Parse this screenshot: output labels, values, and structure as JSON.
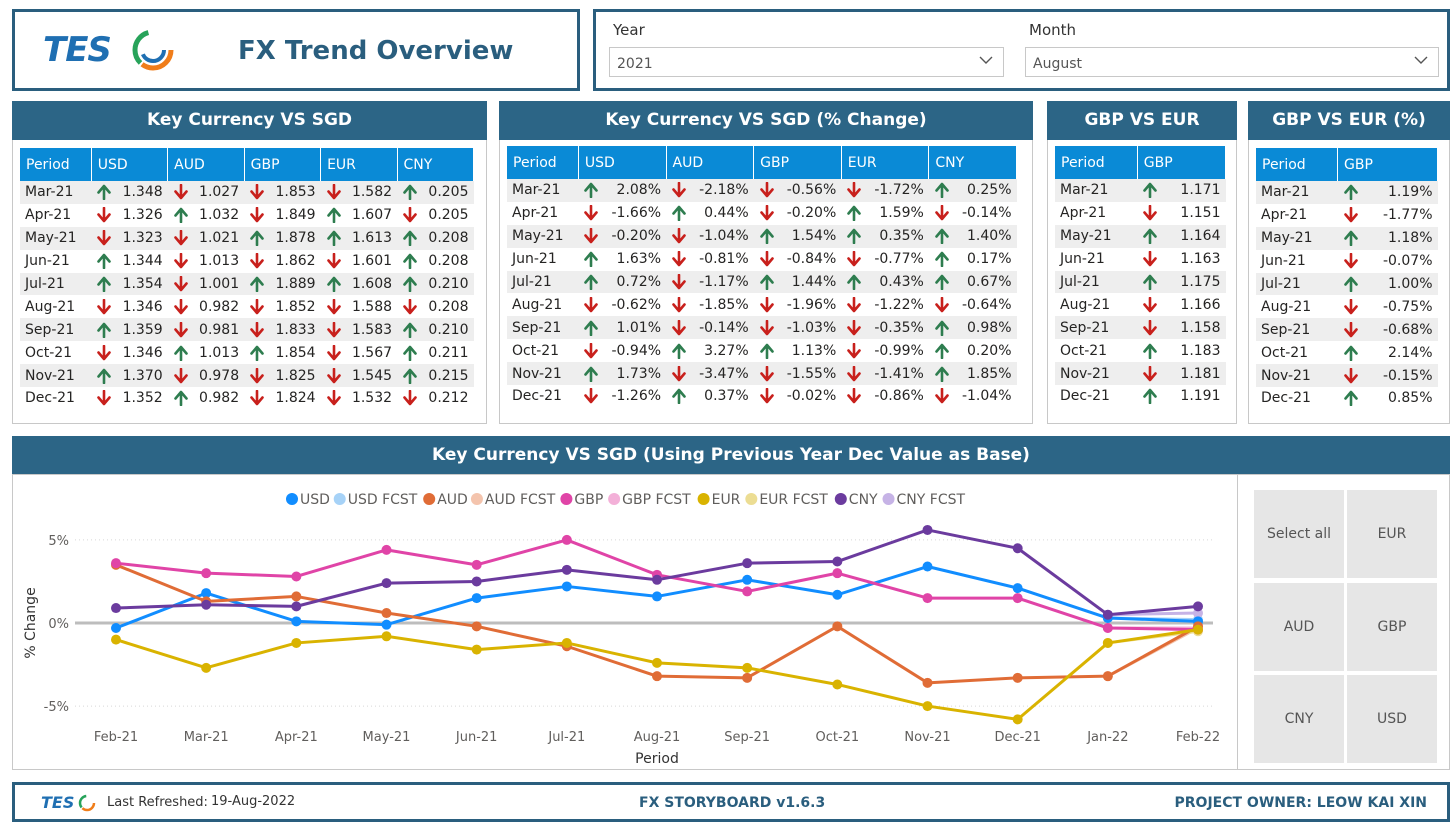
{
  "header": {
    "logo_text": "TES",
    "title": "FX Trend Overview"
  },
  "slicers": {
    "year": {
      "label": "Year",
      "value": "2021"
    },
    "month": {
      "label": "Month",
      "value": "August"
    }
  },
  "arrow_colors": {
    "up": "#2e7d4f",
    "down": "#c8201c"
  },
  "key_table": {
    "title": "Key Currency VS SGD",
    "columns": [
      "Period",
      "USD",
      "AUD",
      "GBP",
      "EUR",
      "CNY"
    ],
    "rows": [
      {
        "period": "Mar-21",
        "cells": [
          {
            "dir": "up",
            "v": "1.348"
          },
          {
            "dir": "down",
            "v": "1.027"
          },
          {
            "dir": "down",
            "v": "1.853"
          },
          {
            "dir": "down",
            "v": "1.582"
          },
          {
            "dir": "up",
            "v": "0.205"
          }
        ]
      },
      {
        "period": "Apr-21",
        "cells": [
          {
            "dir": "down",
            "v": "1.326"
          },
          {
            "dir": "up",
            "v": "1.032"
          },
          {
            "dir": "down",
            "v": "1.849"
          },
          {
            "dir": "up",
            "v": "1.607"
          },
          {
            "dir": "down",
            "v": "0.205"
          }
        ]
      },
      {
        "period": "May-21",
        "cells": [
          {
            "dir": "down",
            "v": "1.323"
          },
          {
            "dir": "down",
            "v": "1.021"
          },
          {
            "dir": "up",
            "v": "1.878"
          },
          {
            "dir": "up",
            "v": "1.613"
          },
          {
            "dir": "up",
            "v": "0.208"
          }
        ]
      },
      {
        "period": "Jun-21",
        "cells": [
          {
            "dir": "up",
            "v": "1.344"
          },
          {
            "dir": "down",
            "v": "1.013"
          },
          {
            "dir": "down",
            "v": "1.862"
          },
          {
            "dir": "down",
            "v": "1.601"
          },
          {
            "dir": "up",
            "v": "0.208"
          }
        ]
      },
      {
        "period": "Jul-21",
        "cells": [
          {
            "dir": "up",
            "v": "1.354"
          },
          {
            "dir": "down",
            "v": "1.001"
          },
          {
            "dir": "up",
            "v": "1.889"
          },
          {
            "dir": "up",
            "v": "1.608"
          },
          {
            "dir": "up",
            "v": "0.210"
          }
        ]
      },
      {
        "period": "Aug-21",
        "cells": [
          {
            "dir": "down",
            "v": "1.346"
          },
          {
            "dir": "down",
            "v": "0.982"
          },
          {
            "dir": "down",
            "v": "1.852"
          },
          {
            "dir": "down",
            "v": "1.588"
          },
          {
            "dir": "down",
            "v": "0.208"
          }
        ]
      },
      {
        "period": "Sep-21",
        "cells": [
          {
            "dir": "up",
            "v": "1.359"
          },
          {
            "dir": "down",
            "v": "0.981"
          },
          {
            "dir": "down",
            "v": "1.833"
          },
          {
            "dir": "down",
            "v": "1.583"
          },
          {
            "dir": "up",
            "v": "0.210"
          }
        ]
      },
      {
        "period": "Oct-21",
        "cells": [
          {
            "dir": "down",
            "v": "1.346"
          },
          {
            "dir": "up",
            "v": "1.013"
          },
          {
            "dir": "up",
            "v": "1.854"
          },
          {
            "dir": "down",
            "v": "1.567"
          },
          {
            "dir": "up",
            "v": "0.211"
          }
        ]
      },
      {
        "period": "Nov-21",
        "cells": [
          {
            "dir": "up",
            "v": "1.370"
          },
          {
            "dir": "down",
            "v": "0.978"
          },
          {
            "dir": "down",
            "v": "1.825"
          },
          {
            "dir": "down",
            "v": "1.545"
          },
          {
            "dir": "up",
            "v": "0.215"
          }
        ]
      },
      {
        "period": "Dec-21",
        "cells": [
          {
            "dir": "down",
            "v": "1.352"
          },
          {
            "dir": "up",
            "v": "0.982"
          },
          {
            "dir": "down",
            "v": "1.824"
          },
          {
            "dir": "down",
            "v": "1.532"
          },
          {
            "dir": "down",
            "v": "0.212"
          }
        ]
      }
    ]
  },
  "pct_table": {
    "title": "Key Currency VS SGD (% Change)",
    "columns": [
      "Period",
      "USD",
      "AUD",
      "GBP",
      "EUR",
      "CNY"
    ],
    "rows": [
      {
        "period": "Mar-21",
        "cells": [
          {
            "dir": "up",
            "v": "2.08%"
          },
          {
            "dir": "down",
            "v": "-2.18%"
          },
          {
            "dir": "down",
            "v": "-0.56%"
          },
          {
            "dir": "down",
            "v": "-1.72%"
          },
          {
            "dir": "up",
            "v": "0.25%"
          }
        ]
      },
      {
        "period": "Apr-21",
        "cells": [
          {
            "dir": "down",
            "v": "-1.66%"
          },
          {
            "dir": "up",
            "v": "0.44%"
          },
          {
            "dir": "down",
            "v": "-0.20%"
          },
          {
            "dir": "up",
            "v": "1.59%"
          },
          {
            "dir": "down",
            "v": "-0.14%"
          }
        ]
      },
      {
        "period": "May-21",
        "cells": [
          {
            "dir": "down",
            "v": "-0.20%"
          },
          {
            "dir": "down",
            "v": "-1.04%"
          },
          {
            "dir": "up",
            "v": "1.54%"
          },
          {
            "dir": "up",
            "v": "0.35%"
          },
          {
            "dir": "up",
            "v": "1.40%"
          }
        ]
      },
      {
        "period": "Jun-21",
        "cells": [
          {
            "dir": "up",
            "v": "1.63%"
          },
          {
            "dir": "down",
            "v": "-0.81%"
          },
          {
            "dir": "down",
            "v": "-0.84%"
          },
          {
            "dir": "down",
            "v": "-0.77%"
          },
          {
            "dir": "up",
            "v": "0.17%"
          }
        ]
      },
      {
        "period": "Jul-21",
        "cells": [
          {
            "dir": "up",
            "v": "0.72%"
          },
          {
            "dir": "down",
            "v": "-1.17%"
          },
          {
            "dir": "up",
            "v": "1.44%"
          },
          {
            "dir": "up",
            "v": "0.43%"
          },
          {
            "dir": "up",
            "v": "0.67%"
          }
        ]
      },
      {
        "period": "Aug-21",
        "cells": [
          {
            "dir": "down",
            "v": "-0.62%"
          },
          {
            "dir": "down",
            "v": "-1.85%"
          },
          {
            "dir": "down",
            "v": "-1.96%"
          },
          {
            "dir": "down",
            "v": "-1.22%"
          },
          {
            "dir": "down",
            "v": "-0.64%"
          }
        ]
      },
      {
        "period": "Sep-21",
        "cells": [
          {
            "dir": "up",
            "v": "1.01%"
          },
          {
            "dir": "down",
            "v": "-0.14%"
          },
          {
            "dir": "down",
            "v": "-1.03%"
          },
          {
            "dir": "down",
            "v": "-0.35%"
          },
          {
            "dir": "up",
            "v": "0.98%"
          }
        ]
      },
      {
        "period": "Oct-21",
        "cells": [
          {
            "dir": "down",
            "v": "-0.94%"
          },
          {
            "dir": "up",
            "v": "3.27%"
          },
          {
            "dir": "up",
            "v": "1.13%"
          },
          {
            "dir": "down",
            "v": "-0.99%"
          },
          {
            "dir": "up",
            "v": "0.20%"
          }
        ]
      },
      {
        "period": "Nov-21",
        "cells": [
          {
            "dir": "up",
            "v": "1.73%"
          },
          {
            "dir": "down",
            "v": "-3.47%"
          },
          {
            "dir": "down",
            "v": "-1.55%"
          },
          {
            "dir": "down",
            "v": "-1.41%"
          },
          {
            "dir": "up",
            "v": "1.85%"
          }
        ]
      },
      {
        "period": "Dec-21",
        "cells": [
          {
            "dir": "down",
            "v": "-1.26%"
          },
          {
            "dir": "up",
            "v": "0.37%"
          },
          {
            "dir": "down",
            "v": "-0.02%"
          },
          {
            "dir": "down",
            "v": "-0.86%"
          },
          {
            "dir": "down",
            "v": "-1.04%"
          }
        ]
      }
    ]
  },
  "gbp_eur_table": {
    "title": "GBP VS EUR",
    "columns": [
      "Period",
      "GBP"
    ],
    "rows": [
      {
        "period": "Mar-21",
        "cells": [
          {
            "dir": "up",
            "v": "1.171"
          }
        ]
      },
      {
        "period": "Apr-21",
        "cells": [
          {
            "dir": "down",
            "v": "1.151"
          }
        ]
      },
      {
        "period": "May-21",
        "cells": [
          {
            "dir": "up",
            "v": "1.164"
          }
        ]
      },
      {
        "period": "Jun-21",
        "cells": [
          {
            "dir": "down",
            "v": "1.163"
          }
        ]
      },
      {
        "period": "Jul-21",
        "cells": [
          {
            "dir": "up",
            "v": "1.175"
          }
        ]
      },
      {
        "period": "Aug-21",
        "cells": [
          {
            "dir": "down",
            "v": "1.166"
          }
        ]
      },
      {
        "period": "Sep-21",
        "cells": [
          {
            "dir": "down",
            "v": "1.158"
          }
        ]
      },
      {
        "period": "Oct-21",
        "cells": [
          {
            "dir": "up",
            "v": "1.183"
          }
        ]
      },
      {
        "period": "Nov-21",
        "cells": [
          {
            "dir": "down",
            "v": "1.181"
          }
        ]
      },
      {
        "period": "Dec-21",
        "cells": [
          {
            "dir": "up",
            "v": "1.191"
          }
        ]
      }
    ]
  },
  "gbp_eur_pct_table": {
    "title": "GBP VS EUR  (%)",
    "columns": [
      "Period",
      "GBP"
    ],
    "rows": [
      {
        "period": "Mar-21",
        "cells": [
          {
            "dir": "up",
            "v": "1.19%"
          }
        ]
      },
      {
        "period": "Apr-21",
        "cells": [
          {
            "dir": "down",
            "v": "-1.77%"
          }
        ]
      },
      {
        "period": "May-21",
        "cells": [
          {
            "dir": "up",
            "v": "1.18%"
          }
        ]
      },
      {
        "period": "Jun-21",
        "cells": [
          {
            "dir": "down",
            "v": "-0.07%"
          }
        ]
      },
      {
        "period": "Jul-21",
        "cells": [
          {
            "dir": "up",
            "v": "1.00%"
          }
        ]
      },
      {
        "period": "Aug-21",
        "cells": [
          {
            "dir": "down",
            "v": "-0.75%"
          }
        ]
      },
      {
        "period": "Sep-21",
        "cells": [
          {
            "dir": "down",
            "v": "-0.68%"
          }
        ]
      },
      {
        "period": "Oct-21",
        "cells": [
          {
            "dir": "up",
            "v": "2.14%"
          }
        ]
      },
      {
        "period": "Nov-21",
        "cells": [
          {
            "dir": "down",
            "v": "-0.15%"
          }
        ]
      },
      {
        "period": "Dec-21",
        "cells": [
          {
            "dir": "up",
            "v": "0.85%"
          }
        ]
      }
    ]
  },
  "chart_data": {
    "type": "line",
    "title": "Key Currency VS SGD (Using Previous Year Dec Value as Base)",
    "xlabel": "Period",
    "ylabel": "% Change",
    "ylim": [
      -6.5,
      6.5
    ],
    "yticks": [
      {
        "v": 5,
        "label": "5%"
      },
      {
        "v": 0,
        "label": "0%"
      },
      {
        "v": -5,
        "label": "-5%"
      }
    ],
    "grid": true,
    "legend_position": "top",
    "categories": [
      "Feb-21",
      "Mar-21",
      "Apr-21",
      "May-21",
      "Jun-21",
      "Jul-21",
      "Aug-21",
      "Sep-21",
      "Oct-21",
      "Nov-21",
      "Dec-21",
      "Jan-22",
      "Feb-22"
    ],
    "series": [
      {
        "name": "USD",
        "color": "#118dff",
        "values": [
          -0.3,
          1.8,
          0.1,
          -0.1,
          1.5,
          2.2,
          1.6,
          2.6,
          1.7,
          3.4,
          2.1,
          0.3,
          0.1
        ]
      },
      {
        "name": "USD FCST",
        "color": "#a6d2f7",
        "values": [
          null,
          null,
          null,
          null,
          null,
          null,
          null,
          null,
          null,
          null,
          null,
          0.3,
          0.2
        ]
      },
      {
        "name": "AUD",
        "color": "#e06c36",
        "values": [
          3.5,
          1.3,
          1.6,
          0.6,
          -0.2,
          -1.4,
          -3.2,
          -3.3,
          -0.2,
          -3.6,
          -3.3,
          -3.2,
          -0.2
        ]
      },
      {
        "name": "AUD FCST",
        "color": "#f4c4ad",
        "values": [
          null,
          null,
          null,
          null,
          null,
          null,
          null,
          null,
          null,
          null,
          null,
          -3.2,
          -0.3
        ]
      },
      {
        "name": "GBP",
        "color": "#e044a7",
        "values": [
          3.6,
          3.0,
          2.8,
          4.4,
          3.5,
          5.0,
          2.9,
          1.9,
          3.0,
          1.5,
          1.5,
          -0.3,
          -0.4
        ]
      },
      {
        "name": "GBP FCST",
        "color": "#f3b0d8",
        "values": [
          null,
          null,
          null,
          null,
          null,
          null,
          null,
          null,
          null,
          null,
          null,
          -0.3,
          -0.3
        ]
      },
      {
        "name": "EUR",
        "color": "#d9b300",
        "values": [
          -1.0,
          -2.7,
          -1.2,
          -0.8,
          -1.6,
          -1.2,
          -2.4,
          -2.7,
          -3.7,
          -5.0,
          -5.8,
          -1.2,
          -0.4
        ]
      },
      {
        "name": "EUR FCST",
        "color": "#ecdd93",
        "values": [
          null,
          null,
          null,
          null,
          null,
          null,
          null,
          null,
          null,
          null,
          null,
          -1.2,
          -0.5
        ]
      },
      {
        "name": "CNY",
        "color": "#6b3b9e",
        "values": [
          0.9,
          1.1,
          1.0,
          2.4,
          2.5,
          3.2,
          2.6,
          3.6,
          3.7,
          5.6,
          4.5,
          0.5,
          1.0
        ]
      },
      {
        "name": "CNY FCST",
        "color": "#c6b3e6",
        "values": [
          null,
          null,
          null,
          null,
          null,
          null,
          null,
          null,
          null,
          null,
          null,
          0.5,
          0.6
        ]
      }
    ]
  },
  "currency_filter": {
    "buttons": [
      "Select all",
      "EUR",
      "AUD",
      "GBP",
      "CNY",
      "USD"
    ]
  },
  "footer": {
    "logo_text": "TES",
    "refreshed_label": "Last Refreshed:",
    "refreshed_value": "19-Aug-2022",
    "version": "FX STORYBOARD v1.6.3",
    "owner": "PROJECT OWNER: LEOW KAI XIN"
  }
}
